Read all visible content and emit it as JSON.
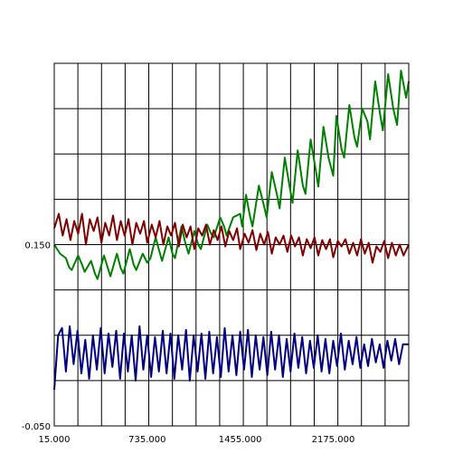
{
  "chart_data": {
    "type": "line",
    "x_ticks": [
      "15.000",
      "735.000",
      "1455.000",
      "2175.000"
    ],
    "y_ticks": [
      "0.150",
      "-0.050"
    ],
    "xlim": [
      15,
      2760
    ],
    "ylim": [
      -0.05,
      0.35
    ],
    "grid": true,
    "colors": {
      "series_green": "#008000",
      "series_red": "#800000",
      "series_blue": "#000080",
      "grid": "#000000"
    },
    "series": [
      {
        "x": [
          15,
          60,
          105,
          130,
          150,
          200,
          230,
          250,
          300,
          330,
          350,
          400,
          430,
          450,
          500,
          530,
          550,
          600,
          630,
          650,
          700,
          735,
          760,
          800,
          830,
          850,
          900,
          930,
          950,
          1000,
          1030,
          1055,
          1100,
          1130,
          1150,
          1200,
          1230,
          1250,
          1300,
          1330,
          1350,
          1400,
          1455,
          1470,
          1500,
          1530,
          1550,
          1600,
          1640,
          1660,
          1700,
          1740,
          1760,
          1800,
          1840,
          1860,
          1900,
          1940,
          1960,
          2000,
          2040,
          2060,
          2100,
          2140,
          2175,
          2200,
          2240,
          2260,
          2300,
          2340,
          2360,
          2400,
          2440,
          2460,
          2500,
          2540,
          2560,
          2600,
          2640,
          2670,
          2700,
          2740,
          2760
        ],
        "values": [
          0.15,
          0.14,
          0.135,
          0.125,
          0.122,
          0.138,
          0.128,
          0.12,
          0.132,
          0.118,
          0.112,
          0.138,
          0.124,
          0.115,
          0.14,
          0.124,
          0.118,
          0.145,
          0.128,
          0.122,
          0.14,
          0.13,
          0.135,
          0.158,
          0.142,
          0.132,
          0.158,
          0.14,
          0.135,
          0.17,
          0.152,
          0.14,
          0.165,
          0.15,
          0.145,
          0.172,
          0.162,
          0.158,
          0.18,
          0.17,
          0.16,
          0.18,
          0.184,
          0.17,
          0.205,
          0.182,
          0.17,
          0.215,
          0.192,
          0.18,
          0.23,
          0.205,
          0.19,
          0.246,
          0.212,
          0.196,
          0.254,
          0.215,
          0.206,
          0.266,
          0.232,
          0.214,
          0.28,
          0.245,
          0.226,
          0.292,
          0.255,
          0.246,
          0.304,
          0.268,
          0.258,
          0.3,
          0.286,
          0.266,
          0.33,
          0.292,
          0.276,
          0.338,
          0.3,
          0.282,
          0.342,
          0.312,
          0.33
        ]
      },
      {
        "x": [
          15,
          50,
          80,
          110,
          140,
          170,
          200,
          230,
          260,
          290,
          320,
          350,
          380,
          410,
          440,
          470,
          500,
          530,
          560,
          590,
          620,
          650,
          680,
          710,
          735,
          770,
          800,
          830,
          860,
          890,
          920,
          950,
          980,
          1010,
          1040,
          1070,
          1100,
          1130,
          1160,
          1190,
          1220,
          1250,
          1280,
          1310,
          1340,
          1370,
          1400,
          1430,
          1455,
          1490,
          1520,
          1550,
          1580,
          1610,
          1640,
          1670,
          1700,
          1730,
          1760,
          1790,
          1820,
          1850,
          1880,
          1910,
          1940,
          1970,
          2000,
          2030,
          2060,
          2090,
          2120,
          2150,
          2175,
          2210,
          2240,
          2270,
          2300,
          2330,
          2360,
          2390,
          2420,
          2450,
          2480,
          2510,
          2540,
          2570,
          2600,
          2630,
          2660,
          2690,
          2720,
          2760
        ],
        "values": [
          0.168,
          0.184,
          0.16,
          0.178,
          0.155,
          0.176,
          0.162,
          0.184,
          0.15,
          0.178,
          0.165,
          0.18,
          0.152,
          0.174,
          0.16,
          0.182,
          0.155,
          0.176,
          0.16,
          0.178,
          0.15,
          0.174,
          0.162,
          0.176,
          0.152,
          0.172,
          0.158,
          0.176,
          0.15,
          0.17,
          0.16,
          0.174,
          0.148,
          0.172,
          0.158,
          0.17,
          0.145,
          0.168,
          0.16,
          0.172,
          0.15,
          0.166,
          0.155,
          0.17,
          0.148,
          0.165,
          0.155,
          0.168,
          0.145,
          0.162,
          0.152,
          0.166,
          0.144,
          0.162,
          0.15,
          0.164,
          0.14,
          0.158,
          0.15,
          0.16,
          0.142,
          0.16,
          0.148,
          0.158,
          0.138,
          0.156,
          0.146,
          0.158,
          0.138,
          0.155,
          0.145,
          0.156,
          0.136,
          0.154,
          0.148,
          0.156,
          0.14,
          0.152,
          0.138,
          0.156,
          0.14,
          0.152,
          0.13,
          0.148,
          0.142,
          0.154,
          0.135,
          0.152,
          0.138,
          0.15,
          0.138,
          0.15
        ]
      },
      {
        "x": [
          15,
          45,
          75,
          105,
          135,
          165,
          195,
          225,
          255,
          285,
          315,
          345,
          375,
          405,
          435,
          465,
          495,
          525,
          555,
          585,
          615,
          645,
          675,
          705,
          735,
          765,
          795,
          825,
          855,
          885,
          915,
          945,
          975,
          1005,
          1035,
          1065,
          1095,
          1125,
          1155,
          1185,
          1215,
          1245,
          1275,
          1305,
          1335,
          1365,
          1395,
          1425,
          1455,
          1485,
          1515,
          1545,
          1575,
          1605,
          1635,
          1665,
          1695,
          1725,
          1755,
          1785,
          1815,
          1845,
          1875,
          1905,
          1935,
          1965,
          1995,
          2025,
          2055,
          2085,
          2115,
          2145,
          2175,
          2205,
          2235,
          2265,
          2295,
          2325,
          2355,
          2385,
          2415,
          2445,
          2475,
          2505,
          2535,
          2565,
          2595,
          2625,
          2655,
          2685,
          2715,
          2760
        ],
        "values": [
          -0.01,
          0.05,
          0.058,
          0.01,
          0.06,
          0.018,
          0.055,
          0.008,
          0.045,
          0.002,
          0.05,
          0.012,
          0.058,
          0.008,
          0.052,
          0.015,
          0.055,
          0.002,
          0.052,
          0.01,
          0.05,
          0.0,
          0.06,
          0.012,
          0.05,
          0.004,
          0.048,
          0.01,
          0.055,
          0.008,
          0.052,
          0.002,
          0.05,
          0.012,
          0.056,
          0.0,
          0.05,
          0.01,
          0.052,
          0.002,
          0.054,
          0.008,
          0.048,
          0.004,
          0.058,
          0.01,
          0.05,
          0.006,
          0.054,
          0.012,
          0.056,
          0.004,
          0.05,
          0.012,
          0.048,
          0.006,
          0.054,
          0.012,
          0.05,
          0.004,
          0.046,
          0.01,
          0.052,
          0.014,
          0.048,
          0.008,
          0.044,
          0.014,
          0.05,
          0.01,
          0.046,
          0.008,
          0.044,
          0.016,
          0.052,
          0.012,
          0.044,
          0.018,
          0.048,
          0.014,
          0.04,
          0.016,
          0.046,
          0.02,
          0.04,
          0.014,
          0.044,
          0.022,
          0.046,
          0.018,
          0.04,
          0.04
        ]
      }
    ]
  }
}
